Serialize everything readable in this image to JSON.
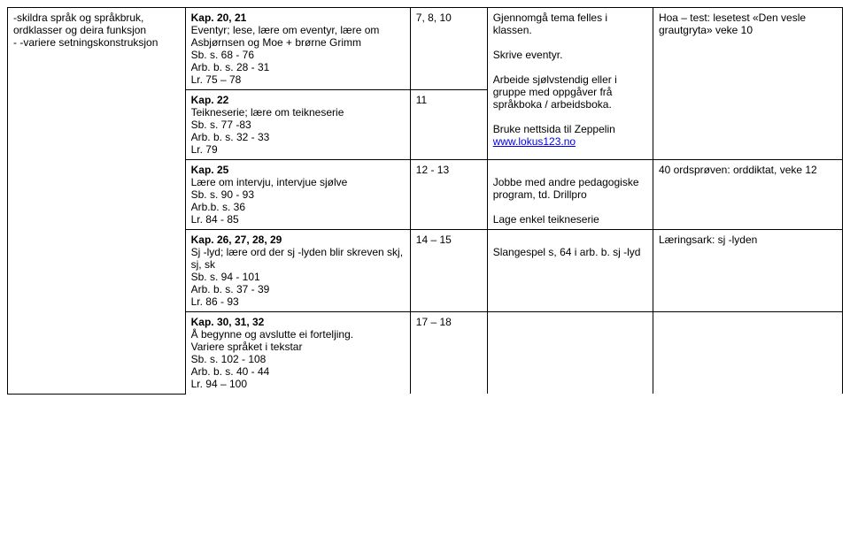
{
  "col1": {
    "block1": "-skildra språk og språkbruk, ordklasser og deira funksjon\n- -variere setningskonstruksjon"
  },
  "col2": {
    "r1_title": "Kap. 20, 21",
    "r1_body": "Eventyr; lese, lære om eventyr, lære om Asbjørnsen og Moe + brørne Grimm\nSb. s. 68 - 76\nArb. b. s. 28 - 31\nLr. 75 – 78",
    "r2_title": "Kap. 22",
    "r2_body": "Teikneserie; lære om teikneserie\nSb. s. 77 -83\nArb. b. s. 32 - 33\nLr. 79",
    "r3_title": "Kap. 25",
    "r3_body": "Lære om intervju, intervjue sjølve\nSb. s. 90  - 93\nArb.b. s. 36\nLr. 84 - 85",
    "r4_title": "Kap. 26, 27, 28, 29",
    "r4_body": "Sj -lyd; lære ord der sj -lyden blir skreven skj, sj, sk\nSb. s. 94 - 101\nArb. b. s. 37 - 39\nLr. 86 - 93",
    "r5_title": "Kap. 30, 31, 32",
    "r5_body": "Å begynne og avslutte ei forteljing.\nVariere språket i tekstar\nSb. s. 102 - 108\nArb. b. s. 40 - 44\nLr. 94 – 100"
  },
  "col3": {
    "r1": "7, 8, 10",
    "r2": "11",
    "r3": "12 - 13",
    "r4": "14 – 15",
    "r5": "17 – 18"
  },
  "col4": {
    "top_a": "Gjennomgå tema felles i klassen.",
    "top_b": "Skrive eventyr.",
    "top_c": "Arbeide sjølvstendig eller i gruppe med oppgåver frå språkboka / arbeidsboka.",
    "top_d_pre": "Bruke nettsida til Zeppelin ",
    "top_d_link": "www.lokus123.no",
    "mid_a": " Jobbe med andre pedagogiske program, td. Drillpro",
    "mid_b": "Lage enkel teikneserie",
    "r4": "Slangespel s, 64 i arb. b. sj -lyd"
  },
  "col5": {
    "r1": "Hoa – test: lesetest «Den vesle grautgryta» veke 10",
    "r3": "40 ordsprøven: orddiktat, veke 12",
    "r4": "Læringsark: sj -lyden"
  }
}
